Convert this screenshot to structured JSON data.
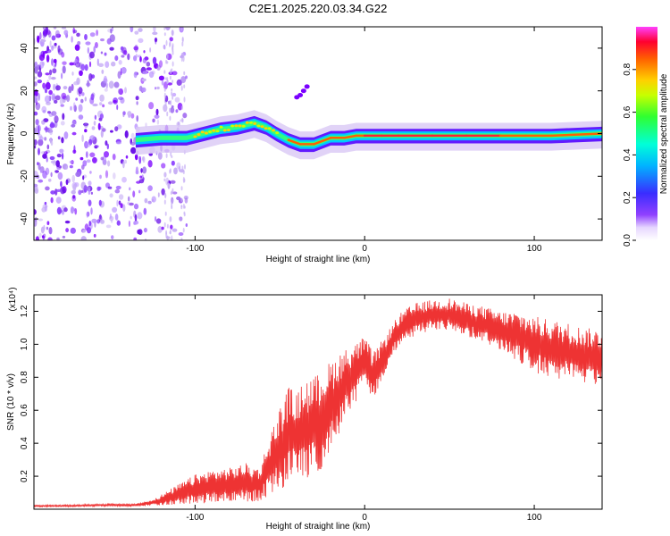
{
  "title": "C2E1.2025.220.03.34.G22",
  "colors": {
    "snr_line": "#ee3333",
    "frame": "#000000",
    "colormap": [
      "#ffffff",
      "#d9c8f5",
      "#a070f0",
      "#7a00ff",
      "#3a2dff",
      "#00b4ff",
      "#00ffd8",
      "#40ff40",
      "#c8ff00",
      "#ffd000",
      "#ff6000",
      "#ff0030",
      "#ff40ff"
    ]
  },
  "chart_data": [
    {
      "type": "heatmap",
      "xlabel": "Height of straight line (km)",
      "ylabel": "Frequency (Hz)",
      "xlim": [
        -195,
        140
      ],
      "ylim": [
        -50,
        50
      ],
      "x_ticks": [
        -100,
        0,
        100
      ],
      "y_ticks": [
        -40,
        -20,
        0,
        20,
        40
      ],
      "grid": false,
      "colorbar": {
        "label": "Normalized spectral amplitude",
        "range": [
          0,
          1
        ],
        "ticks": [
          "0.0",
          "0.2",
          "0.4",
          "0.6",
          "0.8"
        ]
      },
      "ridge": {
        "x": [
          -135,
          -120,
          -105,
          -95,
          -85,
          -75,
          -65,
          -58,
          -52,
          -45,
          -38,
          -30,
          -20,
          -12,
          -5,
          0,
          10,
          20,
          40,
          60,
          80,
          95,
          110,
          140
        ],
        "frequency": [
          -3,
          -2,
          -2,
          0,
          2,
          3,
          5,
          3,
          0,
          -3,
          -5,
          -5,
          -2,
          -2,
          -1,
          -1,
          -1,
          -1,
          -1,
          -1,
          -1,
          -1,
          -1,
          0
        ]
      }
    },
    {
      "type": "line",
      "xlabel": "Height of straight line (km)",
      "ylabel": "SNR (10 * v/v)",
      "y_multiplier": "(x10⁴)",
      "xlim": [
        -195,
        140
      ],
      "ylim": [
        0,
        1.3
      ],
      "x_ticks": [
        -100,
        0,
        100
      ],
      "y_ticks": [
        "0.2",
        "0.4",
        "0.6",
        "0.8",
        "1.0",
        "1.2"
      ],
      "grid": false,
      "series": [
        {
          "x": [
            -195,
            -175,
            -155,
            -135,
            -125,
            -118,
            -110,
            -100,
            -90,
            -80,
            -70,
            -62,
            -55,
            -50,
            -45,
            -40,
            -35,
            -30,
            -25,
            -20,
            -15,
            -10,
            -5,
            0,
            5,
            10,
            15,
            20,
            25,
            30,
            40,
            50,
            60,
            70,
            80,
            90,
            100,
            110,
            120,
            130,
            140
          ],
          "y": [
            0.02,
            0.02,
            0.025,
            0.025,
            0.04,
            0.06,
            0.09,
            0.12,
            0.14,
            0.15,
            0.16,
            0.15,
            0.28,
            0.36,
            0.45,
            0.45,
            0.48,
            0.5,
            0.55,
            0.62,
            0.7,
            0.78,
            0.83,
            0.9,
            0.8,
            0.9,
            1.0,
            1.08,
            1.12,
            1.15,
            1.18,
            1.18,
            1.15,
            1.12,
            1.08,
            1.05,
            1.0,
            0.97,
            0.95,
            0.93,
            0.92
          ],
          "amplitude": [
            0.005,
            0.006,
            0.007,
            0.008,
            0.02,
            0.04,
            0.06,
            0.09,
            0.1,
            0.1,
            0.12,
            0.1,
            0.2,
            0.26,
            0.3,
            0.25,
            0.32,
            0.3,
            0.3,
            0.28,
            0.25,
            0.2,
            0.18,
            0.15,
            0.15,
            0.12,
            0.1,
            0.1,
            0.1,
            0.1,
            0.09,
            0.1,
            0.1,
            0.11,
            0.12,
            0.15,
            0.17,
            0.18,
            0.18,
            0.17,
            0.17
          ]
        }
      ]
    }
  ]
}
